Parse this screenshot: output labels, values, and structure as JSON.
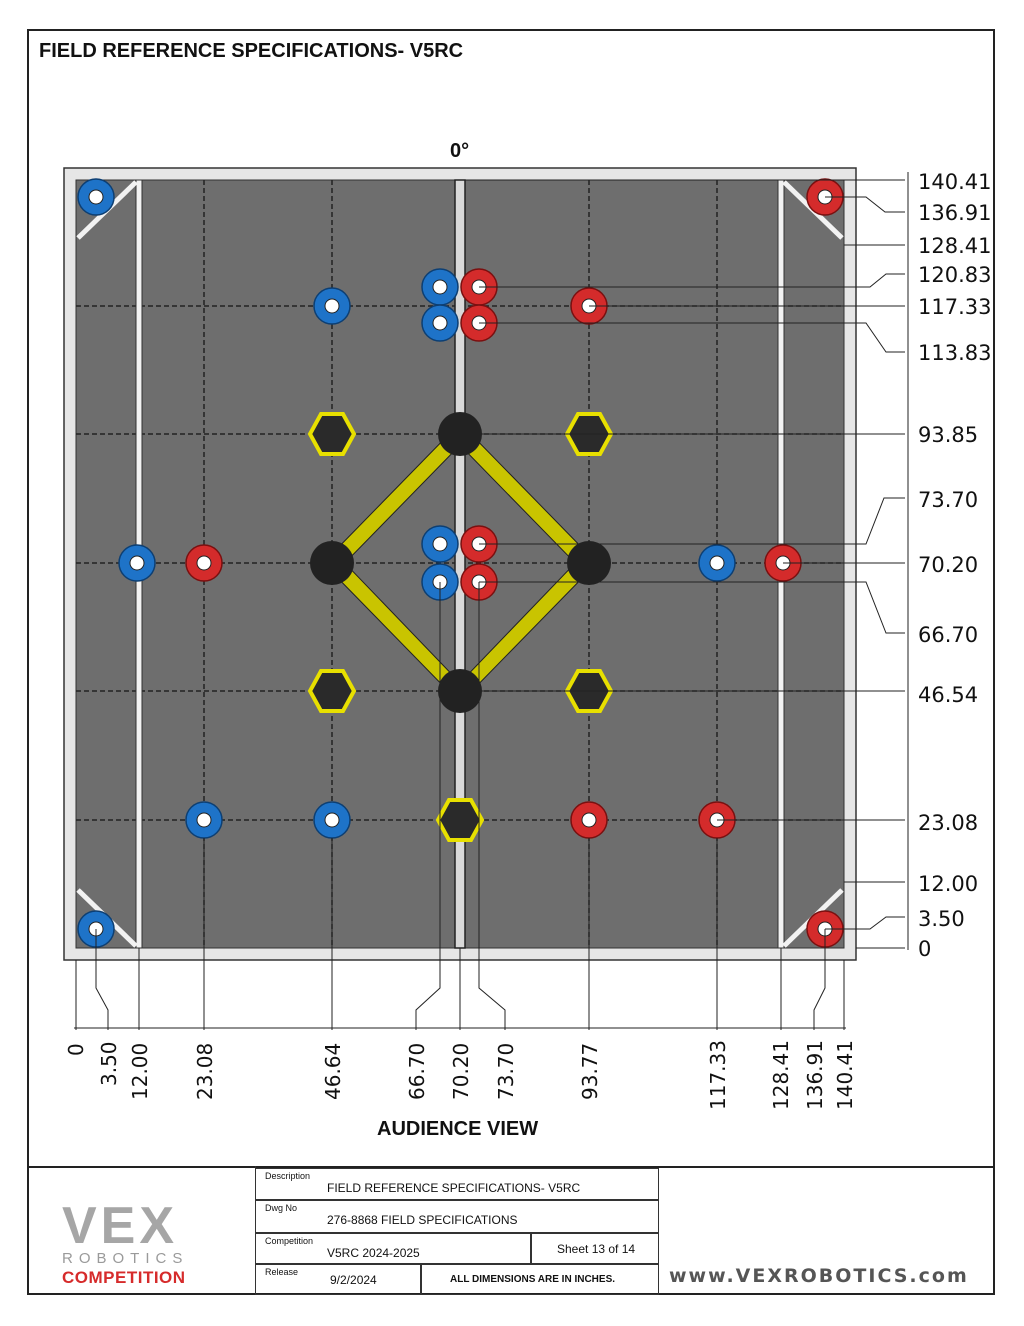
{
  "header": {
    "title": "FIELD REFERENCE SPECIFICATIONS- V5RC",
    "orientation_label": "0°"
  },
  "view_label": "AUDIENCE VIEW",
  "right_dimensions": [
    "140.41",
    "136.91",
    "128.41",
    "120.83",
    "117.33",
    "113.83",
    "93.85",
    "73.70",
    "70.20",
    "66.70",
    "46.54",
    "23.08",
    "12.00",
    "3.50",
    "0"
  ],
  "bottom_dimensions": [
    "0",
    "3.50",
    "12.00",
    "23.08",
    "46.64",
    "66.70",
    "70.20",
    "73.70",
    "93.77",
    "117.33",
    "128.41",
    "136.91",
    "140.41"
  ],
  "title_block": {
    "description_label": "Description",
    "description": "FIELD REFERENCE SPECIFICATIONS- V5RC",
    "dwg_no_label": "Dwg  No",
    "dwg_no": "276-8868 FIELD SPECIFICATIONS",
    "competition_label": "Competition",
    "competition": "V5RC 2024-2025",
    "sheet": "Sheet 13 of 14",
    "release_label": "Release",
    "release": "9/2/2024",
    "note": "ALL DIMENSIONS ARE IN INCHES.",
    "logo_text": "VEX",
    "logo_sub": "ROBOTICS",
    "logo_comp": "COMPETITION",
    "website": "www.VEXROBOTICS.com"
  },
  "colors": {
    "blue": "#1e73c8",
    "red": "#d42b2b",
    "field": "#6e6e6e",
    "yellow": "#e8e000",
    "frame": "#e6e6e6"
  }
}
